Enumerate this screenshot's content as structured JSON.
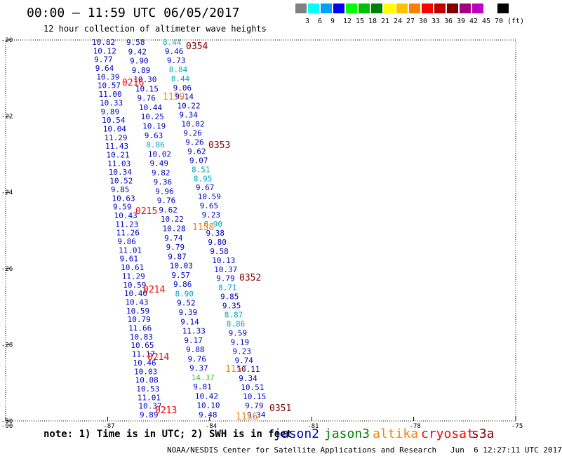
{
  "header": {
    "title": "00:00 – 11:59 UTC 06/05/2017",
    "subtitle": "12 hour collection of altimeter wave heights"
  },
  "legend": {
    "colors": [
      "#808080",
      "#00ffff",
      "#00a0ff",
      "#0000ff",
      "#00ff00",
      "#00c000",
      "#008000",
      "#ffff00",
      "#ffc000",
      "#ff8000",
      "#ff0000",
      "#c00000",
      "#800000",
      "#a00080",
      "#c000c0",
      "#ffffff",
      "#000000"
    ],
    "labels": [
      "3",
      "6",
      "9",
      "12",
      "15",
      "18",
      "21",
      "24",
      "27",
      "30",
      "33",
      "36",
      "39",
      "42",
      "45",
      "70",
      "(ft)"
    ]
  },
  "axes": {
    "lat_ticks": [
      "-20",
      "-22",
      "-24",
      "-26",
      "-28",
      "-30"
    ],
    "lon_ticks": [
      "-90",
      "-87",
      "-84",
      "-81",
      "-78",
      "-75"
    ]
  },
  "tracks": [
    {
      "color": "#0000c0",
      "values": [
        "10.82",
        "10.12",
        "9.77",
        "9.64",
        "10.39",
        "10.57",
        "11.00",
        "10.33",
        "9.89",
        "10.54",
        "10.04",
        "11.29",
        "11.43",
        "10.21",
        "11.03",
        "10.34",
        "10.52",
        "9.85",
        "10.63",
        "9.59",
        "10.43",
        "11.23",
        "11.26",
        "9.86",
        "11.01",
        "9.61",
        "10.61",
        "11.29",
        "10.59",
        "10.40",
        "10.43",
        "10.59",
        "10.79",
        "11.66",
        "10.83",
        "10.65",
        "11.17",
        "10.46",
        "10.03",
        "10.08",
        "10.53",
        "11.01",
        "10.37",
        "9.89"
      ]
    },
    {
      "color": "#0000c0",
      "values": [
        "9.58",
        "9.42",
        "9.90",
        "9.89",
        "10.30",
        "10.15",
        "9.76",
        "10.44",
        "10.25",
        "10.19",
        "9.63",
        "8.86",
        "10.02",
        "9.49",
        "9.82",
        "9.36",
        "9.96",
        "9.76",
        "9.62",
        "10.22",
        "10.28",
        "9.74",
        "9.79",
        "9.87",
        "10.03",
        "9.57",
        "9.86",
        "8.90",
        "9.52",
        "9.39",
        "9.14",
        "11.33",
        "9.17",
        "9.88",
        "9.76",
        "9.37",
        "14.37",
        "9.81",
        "10.42",
        "10.10",
        "9.48"
      ]
    },
    {
      "color": "#0000c0",
      "values": [
        "8.44",
        "9.46",
        "9.73",
        "8.84",
        "8.44",
        "9.06",
        "9.14",
        "10.22",
        "9.34",
        "10.02",
        "9.26",
        "9.26",
        "9.62",
        "9.07",
        "8.51",
        "8.95",
        "9.67",
        "10.59",
        "9.65",
        "9.23",
        "8.90",
        "9.38",
        "9.80",
        "9.58",
        "10.13",
        "10.37",
        "9.79",
        "8.71",
        "9.85",
        "9.35",
        "8.87",
        "8.86",
        "9.59",
        "9.19",
        "9.23",
        "9.74",
        "10.11",
        "9.34",
        "10.51",
        "10.15",
        "9.79",
        "9.34"
      ]
    }
  ],
  "labels": [
    {
      "text": "0354",
      "color": "#800000"
    },
    {
      "text": "0216",
      "color": "#ff0000"
    },
    {
      "text": "1159",
      "color": "#ff8000"
    },
    {
      "text": "0353",
      "color": "#800000"
    },
    {
      "text": "0215",
      "color": "#ff0000"
    },
    {
      "text": "1158",
      "color": "#ff8000"
    },
    {
      "text": "0352",
      "color": "#800000"
    },
    {
      "text": "0214",
      "color": "#ff0000"
    },
    {
      "text": "0214",
      "color": "#ff0000"
    },
    {
      "text": "1157",
      "color": "#ff8000"
    },
    {
      "text": "0213",
      "color": "#ff0000"
    },
    {
      "text": "1156",
      "color": "#ff8000"
    },
    {
      "text": "0351",
      "color": "#800000"
    }
  ],
  "footer": {
    "note": "note: 1) Time is in UTC; 2) SWH is in feet",
    "credit": "NOAA/NESDIS Center for Satellite Applications and Research   Jun  6 12:27:11 UTC 2017",
    "satellites": [
      {
        "name": "jason2",
        "color": "#0000c0"
      },
      {
        "name": "jason3",
        "color": "#008000"
      },
      {
        "name": "altika",
        "color": "#ff8000"
      },
      {
        "name": "cryosat",
        "color": "#ff0000"
      },
      {
        "name": "s3a",
        "color": "#800000"
      }
    ]
  }
}
